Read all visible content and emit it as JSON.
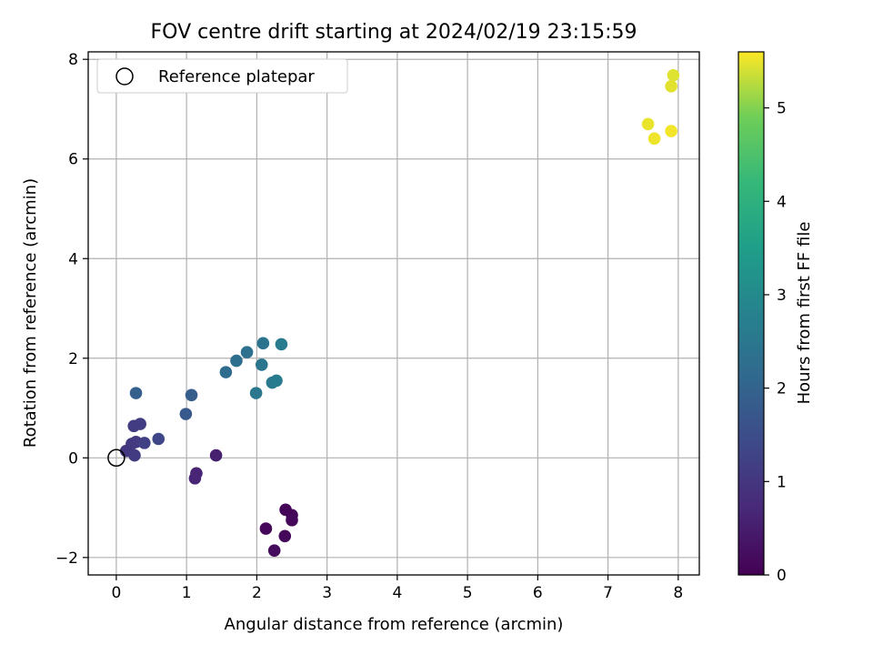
{
  "chart_data": {
    "type": "scatter",
    "title": "FOV centre drift starting at 2024/02/19 23:15:59",
    "xlabel": "Angular distance from reference (arcmin)",
    "ylabel": "Rotation from reference (arcmin)",
    "xlim": [
      -0.4,
      8.3
    ],
    "ylim": [
      -2.35,
      8.15
    ],
    "xticks": [
      0,
      1,
      2,
      3,
      4,
      5,
      6,
      7,
      8
    ],
    "yticks": [
      -2,
      0,
      2,
      4,
      6,
      8
    ],
    "grid": true,
    "legend": {
      "position": "top-left",
      "entries": [
        "Reference platepar"
      ]
    },
    "reference": {
      "x": 0,
      "y": 0
    },
    "colorbar": {
      "label": "Hours from first FF file",
      "range": [
        0,
        5.6
      ],
      "ticks": [
        0,
        1,
        2,
        3,
        4,
        5
      ],
      "colormap": "viridis"
    },
    "points": [
      {
        "x": 2.41,
        "y": -1.04,
        "h": 0.05
      },
      {
        "x": 2.5,
        "y": -1.15,
        "h": 0.08
      },
      {
        "x": 2.5,
        "y": -1.25,
        "h": 0.1
      },
      {
        "x": 2.13,
        "y": -1.42,
        "h": 0.12
      },
      {
        "x": 2.4,
        "y": -1.57,
        "h": 0.15
      },
      {
        "x": 2.25,
        "y": -1.86,
        "h": 0.18
      },
      {
        "x": 1.42,
        "y": 0.05,
        "h": 0.55
      },
      {
        "x": 1.14,
        "y": -0.31,
        "h": 0.62
      },
      {
        "x": 1.12,
        "y": -0.41,
        "h": 0.65
      },
      {
        "x": 0.14,
        "y": 0.14,
        "h": 1.0
      },
      {
        "x": 0.22,
        "y": 0.28,
        "h": 1.05
      },
      {
        "x": 0.28,
        "y": 0.32,
        "h": 1.08
      },
      {
        "x": 0.26,
        "y": 0.05,
        "h": 1.1
      },
      {
        "x": 0.25,
        "y": 0.64,
        "h": 1.12
      },
      {
        "x": 0.34,
        "y": 0.68,
        "h": 1.15
      },
      {
        "x": 0.4,
        "y": 0.3,
        "h": 1.2
      },
      {
        "x": 0.6,
        "y": 0.38,
        "h": 1.35
      },
      {
        "x": 0.99,
        "y": 0.88,
        "h": 1.75
      },
      {
        "x": 1.07,
        "y": 1.26,
        "h": 1.85
      },
      {
        "x": 0.28,
        "y": 1.3,
        "h": 1.9
      },
      {
        "x": 1.56,
        "y": 1.72,
        "h": 2.2
      },
      {
        "x": 1.71,
        "y": 1.95,
        "h": 2.3
      },
      {
        "x": 1.86,
        "y": 2.12,
        "h": 2.35
      },
      {
        "x": 2.09,
        "y": 2.3,
        "h": 2.4
      },
      {
        "x": 2.07,
        "y": 1.87,
        "h": 2.45
      },
      {
        "x": 1.99,
        "y": 1.3,
        "h": 2.5
      },
      {
        "x": 2.22,
        "y": 1.51,
        "h": 2.55
      },
      {
        "x": 2.28,
        "y": 1.55,
        "h": 2.6
      },
      {
        "x": 2.35,
        "y": 2.28,
        "h": 2.65
      },
      {
        "x": 7.93,
        "y": 7.68,
        "h": 5.45
      },
      {
        "x": 7.9,
        "y": 7.46,
        "h": 5.47
      },
      {
        "x": 7.57,
        "y": 6.7,
        "h": 5.5
      },
      {
        "x": 7.66,
        "y": 6.41,
        "h": 5.52
      },
      {
        "x": 7.9,
        "y": 6.56,
        "h": 5.55
      }
    ]
  }
}
